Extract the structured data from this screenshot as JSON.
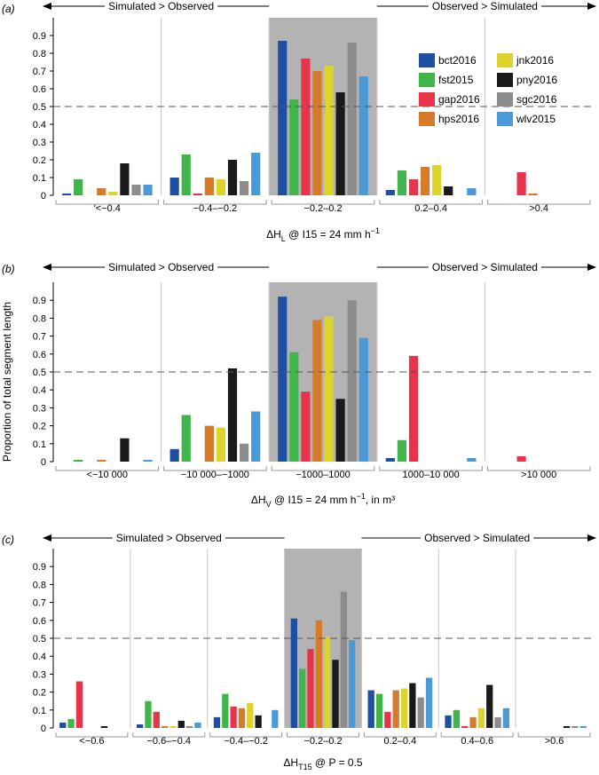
{
  "figure": {
    "ylabel": "Proportion of total segment length",
    "legend": {
      "entries": [
        {
          "name": "bct2016",
          "color": "#1f4fa3"
        },
        {
          "name": "jnk2016",
          "color": "#dcd42a"
        },
        {
          "name": "fst2015",
          "color": "#3fb54a"
        },
        {
          "name": "pny2016",
          "color": "#1a1a1a"
        },
        {
          "name": "gap2016",
          "color": "#e8344a"
        },
        {
          "name": "sgc2016",
          "color": "#8c8c8c"
        },
        {
          "name": "hps2016",
          "color": "#d77a2a"
        },
        {
          "name": "wlv2015",
          "color": "#4a9ad8"
        }
      ],
      "placement": "top-right of panel a"
    },
    "series_order": [
      "bct2016",
      "fst2015",
      "gap2016",
      "hps2016",
      "jnk2016",
      "pny2016",
      "sgc2016",
      "wlv2015"
    ],
    "ytick_labels": [
      "0",
      "0.1",
      "0.2",
      "0.3",
      "0.4",
      "0.5",
      "0.6",
      "0.7",
      "0.8",
      "0.9"
    ],
    "reference_line": 0.5
  },
  "chart_data": [
    {
      "type": "bar",
      "panel_label": "(a)",
      "arrow_left": "Simulated > Observed",
      "arrow_right": "Observed > Simulated",
      "xlabel_parts": [
        "ΔH",
        "L",
        " @ I15 = 24 mm h",
        "−1",
        ""
      ],
      "ylim": [
        0,
        1
      ],
      "categories": [
        "′<−0.4",
        "−0.4–−0.2",
        "−0.2–0.2",
        "0.2–0.4",
        ">0.4"
      ],
      "highlight_category": 2,
      "series": [
        {
          "name": "bct2016",
          "values": [
            0.01,
            0.1,
            0.87,
            0.03,
            0.0
          ]
        },
        {
          "name": "fst2015",
          "values": [
            0.09,
            0.23,
            0.54,
            0.14,
            0.0
          ]
        },
        {
          "name": "gap2016",
          "values": [
            0.0,
            0.01,
            0.77,
            0.09,
            0.13
          ]
        },
        {
          "name": "hps2016",
          "values": [
            0.04,
            0.1,
            0.7,
            0.16,
            0.01
          ]
        },
        {
          "name": "jnk2016",
          "values": [
            0.02,
            0.09,
            0.73,
            0.17,
            0.0
          ]
        },
        {
          "name": "pny2016",
          "values": [
            0.18,
            0.2,
            0.58,
            0.05,
            0.0
          ]
        },
        {
          "name": "sgc2016",
          "values": [
            0.06,
            0.08,
            0.86,
            0.0,
            0.0
          ]
        },
        {
          "name": "wlv2015",
          "values": [
            0.06,
            0.24,
            0.67,
            0.04,
            0.0
          ]
        }
      ]
    },
    {
      "type": "bar",
      "panel_label": "(b)",
      "arrow_left": "Simulated > Observed",
      "arrow_right": "Observed > Simulated",
      "xlabel_parts": [
        "ΔH",
        "V",
        " @ I15 = 24 mm h",
        "−1",
        ", in m³"
      ],
      "ylim": [
        0,
        1
      ],
      "categories": [
        "<−10 000",
        "−10 000–−1000",
        "−1000–1000",
        "1000–10 000",
        ">10 000"
      ],
      "highlight_category": 2,
      "series": [
        {
          "name": "bct2016",
          "values": [
            0.0,
            0.07,
            0.92,
            0.02,
            0.0
          ]
        },
        {
          "name": "fst2015",
          "values": [
            0.01,
            0.26,
            0.61,
            0.12,
            0.0
          ]
        },
        {
          "name": "gap2016",
          "values": [
            0.0,
            0.0,
            0.39,
            0.59,
            0.03
          ]
        },
        {
          "name": "hps2016",
          "values": [
            0.01,
            0.2,
            0.79,
            0.0,
            0.0
          ]
        },
        {
          "name": "jnk2016",
          "values": [
            0.0,
            0.19,
            0.81,
            0.0,
            0.0
          ]
        },
        {
          "name": "pny2016",
          "values": [
            0.13,
            0.52,
            0.35,
            0.0,
            0.0
          ]
        },
        {
          "name": "sgc2016",
          "values": [
            0.0,
            0.1,
            0.9,
            0.0,
            0.0
          ]
        },
        {
          "name": "wlv2015",
          "values": [
            0.01,
            0.28,
            0.69,
            0.02,
            0.0
          ]
        }
      ]
    },
    {
      "type": "bar",
      "panel_label": "(c)",
      "arrow_left": "Simulated > Observed",
      "arrow_right": "Observed > Simulated",
      "xlabel_parts": [
        "ΔH",
        "T15",
        " @ P = 0.5",
        "",
        ""
      ],
      "ylim": [
        0,
        1
      ],
      "categories": [
        "<−0.6",
        "−0.6–−0.4",
        "−0.4–−0.2",
        "−0.2–0.2",
        "0.2–0.4",
        "0.4–0.6",
        ">0.6"
      ],
      "highlight_category": 3,
      "series": [
        {
          "name": "bct2016",
          "values": [
            0.03,
            0.02,
            0.06,
            0.61,
            0.21,
            0.07,
            0.0
          ]
        },
        {
          "name": "fst2015",
          "values": [
            0.05,
            0.15,
            0.19,
            0.33,
            0.19,
            0.1,
            0.0
          ]
        },
        {
          "name": "gap2016",
          "values": [
            0.26,
            0.09,
            0.12,
            0.44,
            0.09,
            0.01,
            0.0
          ]
        },
        {
          "name": "hps2016",
          "values": [
            0.0,
            0.01,
            0.11,
            0.6,
            0.21,
            0.06,
            0.0
          ]
        },
        {
          "name": "jnk2016",
          "values": [
            0.0,
            0.01,
            0.14,
            0.51,
            0.22,
            0.11,
            0.0
          ]
        },
        {
          "name": "pny2016",
          "values": [
            0.01,
            0.04,
            0.07,
            0.38,
            0.25,
            0.24,
            0.01
          ]
        },
        {
          "name": "sgc2016",
          "values": [
            0.0,
            0.01,
            0.0,
            0.76,
            0.17,
            0.06,
            0.01
          ]
        },
        {
          "name": "wlv2015",
          "values": [
            0.0,
            0.03,
            0.1,
            0.49,
            0.28,
            0.11,
            0.01
          ]
        }
      ]
    }
  ]
}
